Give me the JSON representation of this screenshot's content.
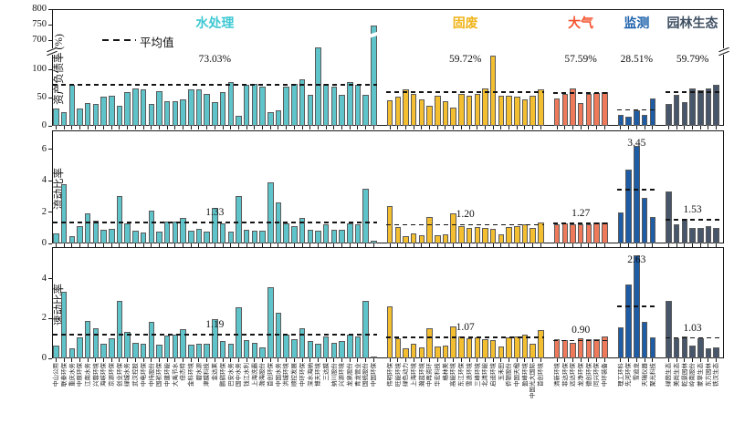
{
  "legend": {
    "mean_label": "平均值"
  },
  "chart_data": {
    "type": "bar",
    "title": "",
    "legend_entries": [
      "平均值"
    ],
    "panels": [
      {
        "ylabel": "资产负债率 (%)",
        "yticks": [
          0,
          50,
          100,
          700,
          750,
          800
        ],
        "broken_axis": true,
        "means": [
          73.03,
          59.72,
          57.59,
          28.51,
          59.79
        ],
        "mean_labels": [
          "73.03%",
          "59.72%",
          "57.59%",
          "28.51%",
          "59.79%"
        ],
        "value_key": "debt_ratio_pct"
      },
      {
        "ylabel": "流动比率",
        "yticks": [
          0,
          2,
          4,
          6
        ],
        "broken_axis": false,
        "means": [
          1.33,
          1.2,
          1.27,
          3.45,
          1.53
        ],
        "mean_labels": [
          "1.33",
          "1.20",
          "1.27",
          "3.45",
          "1.53"
        ],
        "value_key": "current_ratio"
      },
      {
        "ylabel": "速动比率",
        "yticks": [
          0,
          2,
          4
        ],
        "broken_axis": false,
        "means": [
          1.19,
          1.07,
          0.9,
          2.63,
          1.03
        ],
        "mean_labels": [
          "1.19",
          "1.07",
          "0.90",
          "2.63",
          "1.03"
        ],
        "value_key": "quick_ratio"
      }
    ],
    "groups": [
      {
        "name": "水处理",
        "bar_color": "#5EC4CA",
        "title_color": "#3FC8D3",
        "companies": [
          "中山公用",
          "联泰环保",
          "重庆水务",
          "中原环保",
          "江南水务",
          "兴蓉环境",
          "海峡环保",
          "京源环保",
          "创业环保",
          "绿城水务",
          "武汉控股",
          "中电环保",
          "中持股份",
          "国祯环保",
          "中建环能",
          "大禹节水",
          "倍杰特",
          "金科环境",
          "碧水源",
          "津膜科技",
          "金达莱",
          "鹏鹞环保",
          "巴安水务",
          "国中水务",
          "钱江水利",
          "上海洗霸",
          "渤海股份",
          "首创环保",
          "中国水务",
          "洪城环境",
          "顺控发展",
          "中环环保",
          "深水海纳",
          "博天环境",
          "三达膜",
          "纳川股份",
          "兴源环境",
          "龙泉股份",
          "青龙管业",
          "国统股份",
          "中国环保"
        ],
        "debt_ratio_pct": [
          30,
          25,
          72,
          30,
          40,
          39,
          52,
          53,
          36,
          60,
          66,
          65,
          39,
          61,
          43,
          44,
          46,
          65,
          64,
          56,
          42,
          59,
          77,
          18,
          73,
          75,
          70,
          25,
          28,
          70,
          75,
          82,
          55,
          138,
          75,
          70,
          55,
          78,
          72,
          55,
          748
        ],
        "current_ratio": [
          0.65,
          3.8,
          0.45,
          1.1,
          1.9,
          1.45,
          0.85,
          0.95,
          3.0,
          1.3,
          0.8,
          0.7,
          2.1,
          0.75,
          1.4,
          1.4,
          1.65,
          0.8,
          0.95,
          0.75,
          2.25,
          1.3,
          0.75,
          3.0,
          0.9,
          0.8,
          0.8,
          3.9,
          2.6,
          1.3,
          1.1,
          1.6,
          0.9,
          0.8,
          1.2,
          0.9,
          0.9,
          1.3,
          1.2,
          3.5,
          0.15
        ],
        "quick_ratio": [
          0.65,
          3.35,
          0.5,
          1.05,
          1.9,
          1.5,
          0.75,
          1.0,
          2.9,
          1.35,
          0.8,
          0.75,
          1.85,
          0.7,
          1.15,
          1.2,
          1.45,
          0.7,
          0.75,
          0.75,
          1.95,
          0.85,
          0.75,
          2.55,
          0.9,
          0.8,
          0.55,
          3.6,
          2.3,
          1.2,
          0.95,
          1.5,
          0.85,
          0.75,
          1.1,
          0.8,
          0.85,
          1.2,
          1.1,
          2.9,
          0.1
        ]
      },
      {
        "name": "固废",
        "bar_color": "#F3BE30",
        "title_color": "#F0B41C",
        "companies": [
          "伟明环保",
          "旺能环境",
          "绿色动力",
          "上海环境",
          "瀚蓝环境",
          "中再资环",
          "华宏科技",
          "格林美",
          "高能环境",
          "东江环保",
          "雪浪环境",
          "三峰环境",
          "北清环能",
          "启迪环境",
          "玉禾田",
          "侨银股份",
          "中国天楹",
          "盈峰环境",
          "中国光大国际",
          "首创环境"
        ],
        "debt_ratio_pct": [
          45,
          52,
          64,
          56,
          46,
          36,
          54,
          44,
          32,
          56,
          54,
          56,
          66,
          125,
          54,
          54,
          52,
          46,
          54,
          64
        ],
        "current_ratio": [
          2.4,
          1.05,
          0.45,
          0.65,
          0.55,
          1.7,
          0.55,
          0.6,
          1.9,
          1.1,
          1.0,
          1.05,
          1.0,
          0.95,
          0.6,
          1.05,
          1.1,
          1.2,
          1.0,
          1.35
        ],
        "quick_ratio": [
          2.6,
          1.0,
          0.5,
          0.75,
          0.55,
          1.5,
          0.6,
          0.65,
          1.6,
          1.1,
          1.0,
          1.05,
          0.95,
          0.9,
          0.6,
          1.05,
          1.1,
          1.2,
          0.75,
          1.4
        ]
      },
      {
        "name": "大气",
        "bar_color": "#EF7A5B",
        "title_color": "#F4512C",
        "companies": [
          "清新环境",
          "菲达环保",
          "远达环保",
          "龙净环保",
          "德创环保",
          "同兴环保",
          "中环装备"
        ],
        "debt_ratio_pct": [
          48,
          57,
          66,
          40,
          57,
          58,
          60
        ],
        "current_ratio": [
          1.25,
          1.3,
          1.25,
          1.2,
          1.25,
          1.35,
          1.35
        ],
        "quick_ratio": [
          0.95,
          0.9,
          0.8,
          1.0,
          0.95,
          0.95,
          1.1
        ]
      },
      {
        "name": "监测",
        "bar_color": "#1E5CA5",
        "title_color": "#1A5FAA",
        "companies": [
          "理工环科",
          "先河环保",
          "雪迪龙",
          "天瑞仪器",
          "聚光科技"
        ],
        "debt_ratio_pct": [
          20,
          16,
          28,
          20,
          48
        ],
        "current_ratio": [
          2.0,
          4.7,
          6.2,
          2.9,
          1.7
        ],
        "quick_ratio": [
          1.55,
          3.7,
          5.2,
          1.85,
          1.05
        ]
      },
      {
        "name": "园林生态",
        "bar_color": "#47566A",
        "title_color": "#3F5063",
        "companies": [
          "绿茵生态",
          "美尚生态",
          "乾景园林",
          "岭南股份",
          "蒙草生态",
          "东方园林",
          "铁汉生态"
        ],
        "debt_ratio_pct": [
          38,
          55,
          42,
          66,
          63,
          66,
          72
        ],
        "current_ratio": [
          3.3,
          1.2,
          1.55,
          1.0,
          1.0,
          1.1,
          1.0
        ],
        "quick_ratio": [
          2.9,
          1.0,
          1.1,
          0.65,
          1.0,
          0.5,
          0.55
        ]
      }
    ]
  }
}
